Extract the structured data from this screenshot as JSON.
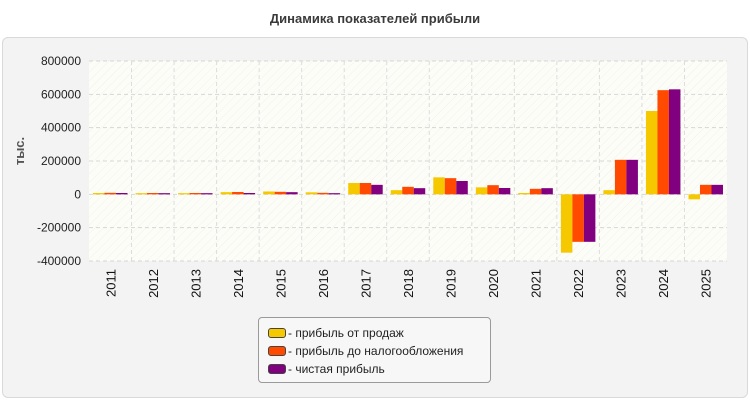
{
  "chart_data": {
    "type": "bar",
    "title": "Динамика показателей прибыли",
    "ylabel": "тыс.",
    "xlabel": "",
    "ylim": [
      -400000,
      800000
    ],
    "yticks": [
      800000,
      600000,
      400000,
      200000,
      0,
      -200000,
      -400000
    ],
    "ytick_labels": [
      "800000",
      "600000",
      "400000",
      "200000",
      "0",
      "-200000",
      "-400000"
    ],
    "categories": [
      "2011",
      "2012",
      "2013",
      "2014",
      "2015",
      "2016",
      "2017",
      "2018",
      "2019",
      "2020",
      "2021",
      "2022",
      "2023",
      "2024",
      "2025"
    ],
    "grid": true,
    "legend_position": "bottom-center",
    "series": [
      {
        "name": "прибыль от продаж",
        "color": "#f5c800",
        "values": [
          8000,
          7000,
          7000,
          13000,
          17000,
          12000,
          68000,
          25000,
          102000,
          42000,
          8000,
          -350000,
          25000,
          500000,
          -30000
        ]
      },
      {
        "name": "прибыль до налогообложения",
        "color": "#ff4a00",
        "values": [
          9000,
          8000,
          8000,
          14000,
          15000,
          9000,
          68000,
          45000,
          97000,
          55000,
          33000,
          -285000,
          207000,
          625000,
          57000
        ]
      },
      {
        "name": "чистая прибыль",
        "color": "#800080",
        "values": [
          8000,
          7000,
          7000,
          8000,
          13000,
          7000,
          57000,
          37000,
          80000,
          38000,
          37000,
          -285000,
          207000,
          630000,
          57000
        ]
      }
    ]
  }
}
